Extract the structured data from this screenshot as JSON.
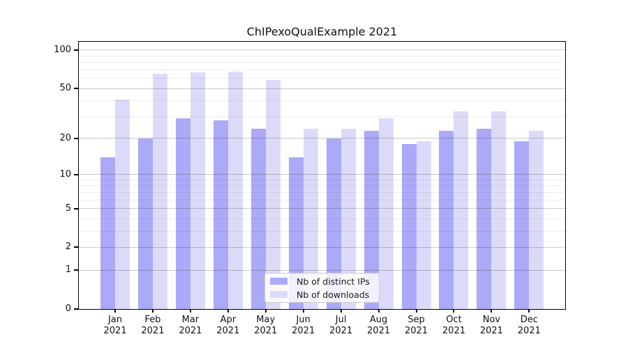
{
  "figure": {
    "background": "#ffffff",
    "title": "ChIPexoQualExample 2021"
  },
  "chart_data": {
    "type": "bar",
    "title": "ChIPexoQualExample 2021",
    "categories": [
      "Jan 2021",
      "Feb 2021",
      "Mar 2021",
      "Apr 2021",
      "May 2021",
      "Jun 2021",
      "Jul 2021",
      "Aug 2021",
      "Sep 2021",
      "Oct 2021",
      "Nov 2021",
      "Dec 2021"
    ],
    "x_tick_labels": [
      {
        "month": "Jan",
        "year": "2021"
      },
      {
        "month": "Feb",
        "year": "2021"
      },
      {
        "month": "Mar",
        "year": "2021"
      },
      {
        "month": "Apr",
        "year": "2021"
      },
      {
        "month": "May",
        "year": "2021"
      },
      {
        "month": "Jun",
        "year": "2021"
      },
      {
        "month": "Jul",
        "year": "2021"
      },
      {
        "month": "Aug",
        "year": "2021"
      },
      {
        "month": "Sep",
        "year": "2021"
      },
      {
        "month": "Oct",
        "year": "2021"
      },
      {
        "month": "Nov",
        "year": "2021"
      },
      {
        "month": "Dec",
        "year": "2021"
      }
    ],
    "series": [
      {
        "name": "Nb of distinct IPs",
        "color": "#aaaaf8",
        "values": [
          14,
          20,
          29,
          28,
          24,
          14,
          20,
          23,
          18,
          23,
          24,
          19
        ]
      },
      {
        "name": "Nb of downloads",
        "color": "#dbdbf9",
        "values": [
          41,
          65,
          67,
          68,
          58,
          24,
          24,
          29,
          19,
          33,
          33,
          23
        ]
      }
    ],
    "xlabel": "",
    "ylabel": "",
    "yscale": "log1p",
    "ylim": [
      0,
      110
    ],
    "yticks": [
      0,
      1,
      2,
      5,
      10,
      20,
      50,
      100
    ],
    "minor_yticks": [
      3,
      4,
      6,
      7,
      8,
      9,
      30,
      40,
      60,
      70,
      80,
      90
    ],
    "grid": true,
    "legend_position": "lower-center"
  },
  "colors": {
    "bar_distinct_ips": "#aaaaf8",
    "bar_downloads": "#dbdbf9",
    "grid_major": "#cccccc",
    "grid_minor": "#ededed",
    "axis_frame": "#000000",
    "text": "#111111"
  }
}
